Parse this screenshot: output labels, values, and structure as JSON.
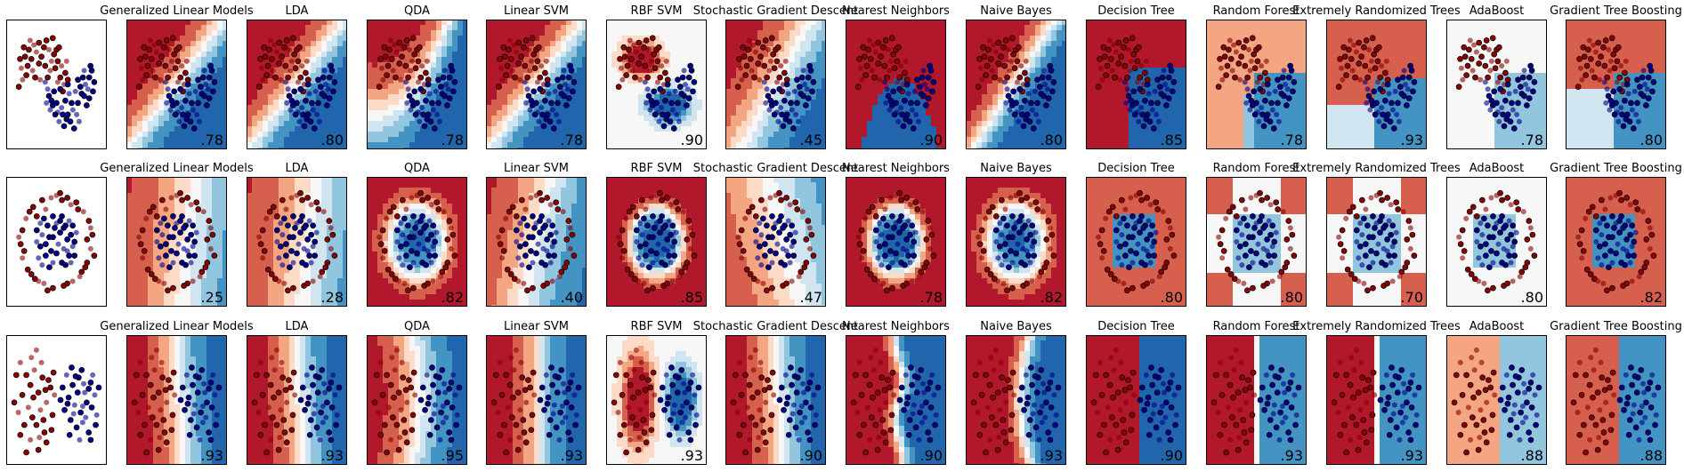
{
  "figure": {
    "column_titles": [
      "",
      "Generalized Linear Models",
      "LDA",
      "QDA",
      "Linear SVM",
      "RBF SVM",
      "Stochastic Gradient Descent",
      "Nearest Neighbors",
      "Naive Bayes",
      "Decision Tree",
      "Random Forest",
      "Extremely Randomized Trees",
      "AdaBoost",
      "Gradient Tree Boosting"
    ],
    "colors": {
      "red_class": "#8b0000",
      "blue_class": "#00008b",
      "cmap": [
        "#b2182b",
        "#d6604d",
        "#f4a582",
        "#fddbc7",
        "#f7f7f7",
        "#d1e5f0",
        "#92c5de",
        "#4393c3",
        "#2166ac"
      ]
    }
  },
  "chart_data": [
    {
      "type": "scatter",
      "dataset": "moons",
      "classifiers": [
        "Generalized Linear Models",
        "LDA",
        "QDA",
        "Linear SVM",
        "RBF SVM",
        "Stochastic Gradient Descent",
        "Nearest Neighbors",
        "Naive Bayes",
        "Decision Tree",
        "Random Forest",
        "Extremely Randomized Trees",
        "AdaBoost",
        "Gradient Tree Boosting"
      ],
      "scores": [
        ".78",
        ".80",
        ".78",
        ".78",
        ".90",
        ".45",
        ".90",
        ".80",
        ".85",
        ".78",
        ".93",
        ".78",
        ".80"
      ],
      "series": [
        {
          "values": [
            [
              -0.9,
              0.55
            ],
            [
              -0.75,
              0.8
            ],
            [
              -0.6,
              0.95
            ],
            [
              -0.4,
              1.05
            ],
            [
              -0.2,
              1.1
            ],
            [
              0.0,
              1.0
            ],
            [
              0.2,
              0.95
            ],
            [
              0.4,
              0.85
            ],
            [
              0.55,
              0.7
            ],
            [
              0.7,
              0.6
            ],
            [
              0.85,
              0.45
            ],
            [
              0.95,
              0.3
            ],
            [
              -0.85,
              0.3
            ],
            [
              -0.65,
              0.6
            ],
            [
              -0.5,
              0.75
            ],
            [
              -0.3,
              0.9
            ],
            [
              -0.1,
              0.8
            ],
            [
              0.1,
              1.15
            ],
            [
              0.3,
              0.7
            ],
            [
              0.5,
              0.95
            ],
            [
              0.65,
              0.35
            ],
            [
              0.8,
              0.2
            ],
            [
              -1.0,
              0.15
            ],
            [
              -0.7,
              0.4
            ],
            [
              -0.45,
              0.5
            ],
            [
              -0.2,
              0.65
            ],
            [
              0.05,
              0.6
            ],
            [
              0.25,
              0.5
            ],
            [
              0.45,
              0.55
            ],
            [
              0.6,
              1.0
            ],
            [
              -0.55,
              1.15
            ],
            [
              -0.35,
              0.35
            ],
            [
              0.35,
              1.2
            ],
            [
              0.9,
              0.7
            ],
            [
              -0.95,
              0.75
            ],
            [
              0.15,
              0.35
            ],
            [
              -0.15,
              0.3
            ],
            [
              0.75,
              0.05
            ],
            [
              -0.8,
              1.0
            ],
            [
              0.55,
              0.25
            ]
          ]
        },
        {
          "values": [
            [
              0.05,
              0.25
            ],
            [
              0.2,
              -0.05
            ],
            [
              0.35,
              -0.25
            ],
            [
              0.55,
              -0.4
            ],
            [
              0.75,
              -0.45
            ],
            [
              0.95,
              -0.45
            ],
            [
              1.15,
              -0.35
            ],
            [
              1.35,
              -0.2
            ],
            [
              1.5,
              0.0
            ],
            [
              1.65,
              0.2
            ],
            [
              1.8,
              0.35
            ],
            [
              1.9,
              0.5
            ],
            [
              0.15,
              0.1
            ],
            [
              0.3,
              -0.15
            ],
            [
              0.5,
              -0.2
            ],
            [
              0.7,
              -0.3
            ],
            [
              0.9,
              -0.55
            ],
            [
              1.1,
              -0.2
            ],
            [
              1.3,
              -0.45
            ],
            [
              1.45,
              0.15
            ],
            [
              1.6,
              -0.05
            ],
            [
              1.75,
              0.1
            ],
            [
              2.0,
              0.25
            ],
            [
              0.4,
              0.05
            ],
            [
              0.6,
              -0.6
            ],
            [
              0.85,
              -0.15
            ],
            [
              1.05,
              -0.6
            ],
            [
              1.25,
              0.05
            ],
            [
              1.55,
              0.35
            ],
            [
              1.85,
              0.6
            ],
            [
              0.25,
              -0.35
            ],
            [
              0.8,
              -0.7
            ],
            [
              1.2,
              -0.75
            ],
            [
              1.4,
              -0.6
            ],
            [
              1.7,
              -0.25
            ],
            [
              0.65,
              0.1
            ],
            [
              1.0,
              0.0
            ],
            [
              1.95,
              0.05
            ],
            [
              0.45,
              -0.45
            ],
            [
              1.6,
              0.5
            ],
            [
              0.95,
              0.2
            ],
            [
              1.35,
              0.3
            ],
            [
              0.1,
              -0.2
            ],
            [
              1.8,
              -0.1
            ]
          ]
        }
      ]
    },
    {
      "type": "scatter",
      "dataset": "circles",
      "classifiers": [
        "Generalized Linear Models",
        "LDA",
        "QDA",
        "Linear SVM",
        "RBF SVM",
        "Stochastic Gradient Descent",
        "Nearest Neighbors",
        "Naive Bayes",
        "Decision Tree",
        "Random Forest",
        "Extremely Randomized Trees",
        "AdaBoost",
        "Gradient Tree Boosting"
      ],
      "scores": [
        ".25",
        ".28",
        ".82",
        ".40",
        ".85",
        ".47",
        ".78",
        ".82",
        ".80",
        ".80",
        ".70",
        ".80",
        ".82"
      ],
      "series": [
        {
          "values": [
            [
              0.0,
              1.0
            ],
            [
              0.3,
              0.95
            ],
            [
              0.55,
              0.85
            ],
            [
              0.75,
              0.65
            ],
            [
              0.9,
              0.45
            ],
            [
              1.0,
              0.15
            ],
            [
              0.95,
              -0.15
            ],
            [
              0.85,
              -0.45
            ],
            [
              0.7,
              -0.65
            ],
            [
              0.45,
              -0.85
            ],
            [
              0.2,
              -0.95
            ],
            [
              -0.1,
              -1.0
            ],
            [
              -0.35,
              -0.9
            ],
            [
              -0.6,
              -0.8
            ],
            [
              -0.8,
              -0.6
            ],
            [
              -0.95,
              -0.35
            ],
            [
              -1.0,
              -0.05
            ],
            [
              -0.95,
              0.25
            ],
            [
              -0.85,
              0.5
            ],
            [
              -0.65,
              0.75
            ],
            [
              -0.4,
              0.9
            ],
            [
              -0.15,
              0.95
            ],
            [
              0.1,
              1.05
            ],
            [
              0.6,
              0.7
            ],
            [
              0.95,
              0.3
            ],
            [
              0.8,
              -0.55
            ],
            [
              0.3,
              -0.9
            ],
            [
              -0.5,
              -0.85
            ],
            [
              -0.9,
              -0.2
            ],
            [
              -0.75,
              0.65
            ],
            [
              0.4,
              0.8
            ],
            [
              -0.25,
              -1.05
            ],
            [
              1.05,
              -0.3
            ],
            [
              -1.05,
              0.1
            ],
            [
              0.15,
              0.9
            ],
            [
              -0.55,
              0.55
            ],
            [
              0.65,
              -0.75
            ],
            [
              -0.7,
              -0.7
            ],
            [
              0.85,
              0.05
            ],
            [
              -0.3,
              0.7
            ]
          ]
        },
        {
          "values": [
            [
              0.0,
              0.4
            ],
            [
              0.25,
              0.35
            ],
            [
              0.4,
              0.15
            ],
            [
              0.45,
              -0.1
            ],
            [
              0.35,
              -0.3
            ],
            [
              0.15,
              -0.45
            ],
            [
              -0.1,
              -0.45
            ],
            [
              -0.3,
              -0.3
            ],
            [
              -0.45,
              -0.1
            ],
            [
              -0.4,
              0.15
            ],
            [
              -0.25,
              0.35
            ],
            [
              0.1,
              0.2
            ],
            [
              0.2,
              -0.15
            ],
            [
              -0.15,
              -0.2
            ],
            [
              -0.2,
              0.1
            ],
            [
              0.05,
              -0.05
            ],
            [
              0.3,
              0.05
            ],
            [
              -0.05,
              0.3
            ],
            [
              0.55,
              0.2
            ],
            [
              0.5,
              -0.3
            ],
            [
              -0.55,
              0.25
            ],
            [
              -0.5,
              -0.35
            ],
            [
              0.15,
              0.55
            ],
            [
              -0.2,
              -0.55
            ],
            [
              0.35,
              0.45
            ],
            [
              -0.35,
              0.5
            ],
            [
              0.25,
              -0.5
            ],
            [
              -0.4,
              -0.5
            ],
            [
              0.0,
              -0.25
            ],
            [
              0.5,
              0.0
            ],
            [
              -0.55,
              0.0
            ],
            [
              0.1,
              0.45
            ],
            [
              -0.1,
              0.55
            ],
            [
              0.4,
              -0.45
            ],
            [
              0.2,
              0.3
            ],
            [
              -0.3,
              -0.05
            ],
            [
              0.3,
              -0.2
            ],
            [
              -0.1,
              0.1
            ],
            [
              0.45,
              0.35
            ],
            [
              -0.45,
              0.4
            ]
          ]
        }
      ]
    },
    {
      "type": "scatter",
      "dataset": "linearly_separable",
      "classifiers": [
        "Generalized Linear Models",
        "LDA",
        "QDA",
        "Linear SVM",
        "RBF SVM",
        "Stochastic Gradient Descent",
        "Nearest Neighbors",
        "Naive Bayes",
        "Decision Tree",
        "Random Forest",
        "Extremely Randomized Trees",
        "AdaBoost",
        "Gradient Tree Boosting"
      ],
      "scores": [
        ".93",
        ".93",
        ".95",
        ".93",
        ".93",
        ".90",
        ".90",
        ".93",
        ".90",
        ".93",
        ".93",
        ".88",
        ".88"
      ],
      "series": [
        {
          "values": [
            [
              -1.5,
              1.5
            ],
            [
              -1.2,
              1.0
            ],
            [
              -1.0,
              0.6
            ],
            [
              -0.8,
              1.2
            ],
            [
              -0.6,
              0.3
            ],
            [
              -0.4,
              0.9
            ],
            [
              -0.2,
              -0.1
            ],
            [
              0.0,
              0.5
            ],
            [
              -1.4,
              0.2
            ],
            [
              -1.1,
              -0.3
            ],
            [
              -0.9,
              -0.7
            ],
            [
              -0.7,
              -1.0
            ],
            [
              -0.5,
              -0.4
            ],
            [
              -0.3,
              -1.3
            ],
            [
              -1.3,
              -1.0
            ],
            [
              -1.0,
              -1.6
            ],
            [
              -0.6,
              -2.0
            ],
            [
              -0.2,
              -1.7
            ],
            [
              -1.6,
              -0.5
            ],
            [
              -0.1,
              0.8
            ],
            [
              0.1,
              -0.6
            ],
            [
              -0.45,
              1.5
            ],
            [
              -1.7,
              1.0
            ],
            [
              -0.85,
              0.1
            ],
            [
              0.2,
              0.2
            ],
            [
              -0.35,
              -0.8
            ],
            [
              -1.2,
              -2.1
            ],
            [
              -0.7,
              2.0
            ],
            [
              0.05,
              -1.2
            ],
            [
              -1.5,
              -1.4
            ],
            [
              -0.95,
              1.7
            ],
            [
              -0.25,
              0.4
            ],
            [
              -1.8,
              -0.1
            ],
            [
              -0.55,
              -1.5
            ],
            [
              0.15,
              1.1
            ]
          ]
        },
        {
          "values": [
            [
              0.8,
              1.0
            ],
            [
              1.1,
              0.6
            ],
            [
              1.4,
              0.9
            ],
            [
              1.7,
              0.3
            ],
            [
              2.0,
              0.7
            ],
            [
              0.9,
              0.1
            ],
            [
              1.2,
              -0.2
            ],
            [
              1.5,
              -0.5
            ],
            [
              1.8,
              -0.1
            ],
            [
              2.2,
              0.2
            ],
            [
              1.0,
              -0.8
            ],
            [
              1.3,
              -1.1
            ],
            [
              1.6,
              -0.9
            ],
            [
              1.9,
              -1.3
            ],
            [
              0.7,
              -0.4
            ],
            [
              2.3,
              -0.6
            ],
            [
              1.05,
              1.3
            ],
            [
              1.55,
              1.2
            ],
            [
              2.1,
              1.0
            ],
            [
              0.6,
              0.5
            ],
            [
              1.35,
              0.3
            ],
            [
              1.75,
              -0.7
            ],
            [
              2.4,
              0.5
            ],
            [
              0.95,
              -1.4
            ],
            [
              1.45,
              -1.6
            ],
            [
              2.05,
              -0.3
            ],
            [
              1.25,
              0.95
            ],
            [
              1.65,
              0.65
            ],
            [
              0.85,
              -0.15
            ],
            [
              2.25,
              -1.0
            ],
            [
              1.15,
              -0.55
            ],
            [
              1.9,
              0.45
            ],
            [
              0.5,
              0.0
            ],
            [
              1.6,
              -0.25
            ],
            [
              2.0,
              -1.6
            ]
          ]
        }
      ]
    }
  ]
}
